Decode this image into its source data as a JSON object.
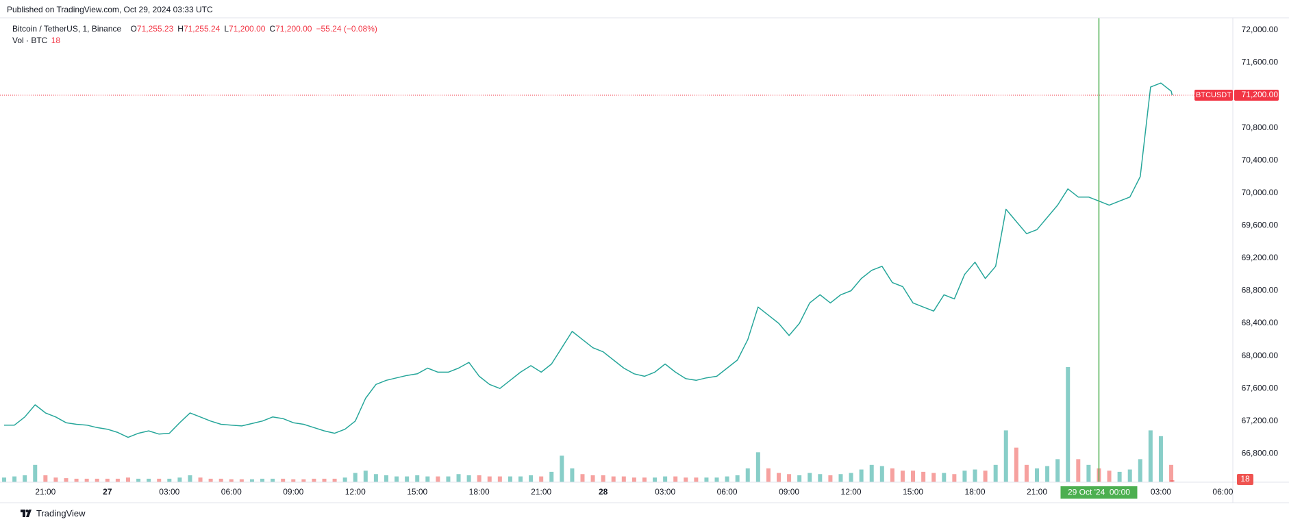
{
  "published": "Published on TradingView.com, Oct 29, 2024 03:33 UTC",
  "legend": {
    "symbol": "Bitcoin / TetherUS, 1, Binance",
    "fields": [
      {
        "key": "O",
        "value": "71,255.23"
      },
      {
        "key": "H",
        "value": "71,255.24"
      },
      {
        "key": "L",
        "value": "71,200.00"
      },
      {
        "key": "C",
        "value": "71,200.00"
      }
    ],
    "change": "−55.24 (−0.08%)",
    "volume_label": "Vol · BTC"
  },
  "footer": "TradingView",
  "chart_data": {
    "type": "line",
    "x": [
      "2024-10-26 19:00",
      "2024-10-26 19:30",
      "2024-10-26 20:00",
      "2024-10-26 20:30",
      "2024-10-26 21:00",
      "2024-10-26 21:30",
      "2024-10-26 22:00",
      "2024-10-26 22:30",
      "2024-10-26 23:00",
      "2024-10-26 23:30",
      "2024-10-27 00:00",
      "2024-10-27 00:30",
      "2024-10-27 01:00",
      "2024-10-27 01:30",
      "2024-10-27 02:00",
      "2024-10-27 02:30",
      "2024-10-27 03:00",
      "2024-10-27 03:30",
      "2024-10-27 04:00",
      "2024-10-27 04:30",
      "2024-10-27 05:00",
      "2024-10-27 05:30",
      "2024-10-27 06:00",
      "2024-10-27 06:30",
      "2024-10-27 07:00",
      "2024-10-27 07:30",
      "2024-10-27 08:00",
      "2024-10-27 08:30",
      "2024-10-27 09:00",
      "2024-10-27 09:30",
      "2024-10-27 10:00",
      "2024-10-27 10:30",
      "2024-10-27 11:00",
      "2024-10-27 11:30",
      "2024-10-27 12:00",
      "2024-10-27 12:30",
      "2024-10-27 13:00",
      "2024-10-27 13:30",
      "2024-10-27 14:00",
      "2024-10-27 14:30",
      "2024-10-27 15:00",
      "2024-10-27 15:30",
      "2024-10-27 16:00",
      "2024-10-27 16:30",
      "2024-10-27 17:00",
      "2024-10-27 17:30",
      "2024-10-27 18:00",
      "2024-10-27 18:30",
      "2024-10-27 19:00",
      "2024-10-27 19:30",
      "2024-10-27 20:00",
      "2024-10-27 20:30",
      "2024-10-27 21:00",
      "2024-10-27 21:30",
      "2024-10-27 22:00",
      "2024-10-27 22:30",
      "2024-10-27 23:00",
      "2024-10-27 23:30",
      "2024-10-28 00:00",
      "2024-10-28 00:30",
      "2024-10-28 01:00",
      "2024-10-28 01:30",
      "2024-10-28 02:00",
      "2024-10-28 02:30",
      "2024-10-28 03:00",
      "2024-10-28 03:30",
      "2024-10-28 04:00",
      "2024-10-28 04:30",
      "2024-10-28 05:00",
      "2024-10-28 05:30",
      "2024-10-28 06:00",
      "2024-10-28 06:30",
      "2024-10-28 07:00",
      "2024-10-28 07:30",
      "2024-10-28 08:00",
      "2024-10-28 08:30",
      "2024-10-28 09:00",
      "2024-10-28 09:30",
      "2024-10-28 10:00",
      "2024-10-28 10:30",
      "2024-10-28 11:00",
      "2024-10-28 11:30",
      "2024-10-28 12:00",
      "2024-10-28 12:30",
      "2024-10-28 13:00",
      "2024-10-28 13:30",
      "2024-10-28 14:00",
      "2024-10-28 14:30",
      "2024-10-28 15:00",
      "2024-10-28 15:30",
      "2024-10-28 16:00",
      "2024-10-28 16:30",
      "2024-10-28 17:00",
      "2024-10-28 17:30",
      "2024-10-28 18:00",
      "2024-10-28 18:30",
      "2024-10-28 19:00",
      "2024-10-28 19:30",
      "2024-10-28 20:00",
      "2024-10-28 20:30",
      "2024-10-28 21:00",
      "2024-10-28 21:30",
      "2024-10-28 22:00",
      "2024-10-28 22:30",
      "2024-10-28 23:00",
      "2024-10-28 23:30",
      "2024-10-29 00:00",
      "2024-10-29 00:30",
      "2024-10-29 01:00",
      "2024-10-29 01:30",
      "2024-10-29 02:00",
      "2024-10-29 02:30",
      "2024-10-29 03:00",
      "2024-10-29 03:30",
      "2024-10-29 03:33"
    ],
    "series": [
      {
        "name": "BTCUSDT",
        "color": "#26a69a",
        "values": [
          67150,
          67150,
          67250,
          67400,
          67300,
          67250,
          67180,
          67160,
          67150,
          67120,
          67100,
          67060,
          67000,
          67050,
          67080,
          67040,
          67050,
          67180,
          67300,
          67250,
          67200,
          67160,
          67150,
          67140,
          67170,
          67200,
          67250,
          67230,
          67180,
          67160,
          67120,
          67080,
          67050,
          67100,
          67200,
          67480,
          67650,
          67700,
          67730,
          67760,
          67780,
          67850,
          67800,
          67800,
          67850,
          67920,
          67750,
          67650,
          67600,
          67700,
          67800,
          67880,
          67800,
          67900,
          68100,
          68300,
          68200,
          68100,
          68050,
          67950,
          67850,
          67780,
          67750,
          67800,
          67900,
          67800,
          67720,
          67700,
          67730,
          67750,
          67850,
          67950,
          68200,
          68600,
          68500,
          68400,
          68250,
          68400,
          68650,
          68750,
          68650,
          68750,
          68800,
          68950,
          69050,
          69100,
          68900,
          68850,
          68650,
          68600,
          68550,
          68750,
          68700,
          69000,
          69150,
          68950,
          69100,
          69800,
          69650,
          69500,
          69550,
          69700,
          69850,
          70050,
          69950,
          69950,
          69900,
          69850,
          69900,
          69950,
          70200,
          71300,
          71350,
          71250,
          71200
        ]
      }
    ],
    "volume": {
      "up_color": "#26a69a",
      "down_color": "#ef5350",
      "ylim": [
        0,
        1000
      ],
      "values": [
        40,
        50,
        60,
        150,
        60,
        40,
        35,
        30,
        30,
        30,
        30,
        30,
        40,
        30,
        30,
        30,
        30,
        40,
        60,
        40,
        30,
        30,
        25,
        25,
        25,
        30,
        30,
        30,
        25,
        25,
        30,
        30,
        30,
        40,
        80,
        100,
        70,
        60,
        50,
        50,
        60,
        50,
        50,
        50,
        70,
        60,
        60,
        50,
        50,
        50,
        50,
        60,
        50,
        90,
        230,
        120,
        70,
        60,
        60,
        50,
        50,
        40,
        40,
        40,
        50,
        50,
        40,
        40,
        40,
        40,
        50,
        60,
        120,
        260,
        120,
        80,
        70,
        60,
        80,
        70,
        60,
        70,
        80,
        110,
        150,
        140,
        120,
        100,
        100,
        90,
        80,
        80,
        70,
        100,
        110,
        100,
        150,
        450,
        300,
        150,
        120,
        140,
        200,
        1000,
        200,
        150,
        120,
        100,
        90,
        110,
        200,
        450,
        400,
        150,
        18
      ]
    },
    "last_price": {
      "value": 71200,
      "label": "71,200.00",
      "color": "#f23645"
    },
    "crosshair": {
      "x": "2024-10-29 00:00",
      "label": "29 Oct '24  00:00",
      "color": "#4caf50"
    },
    "xlim": [
      "2024-10-26 18:48",
      "2024-10-29 06:29"
    ],
    "xticks": [
      {
        "value": "2024-10-26 21:00",
        "label": "21:00"
      },
      {
        "value": "2024-10-27 00:00",
        "label": "27"
      },
      {
        "value": "2024-10-27 03:00",
        "label": "03:00"
      },
      {
        "value": "2024-10-27 06:00",
        "label": "06:00"
      },
      {
        "value": "2024-10-27 09:00",
        "label": "09:00"
      },
      {
        "value": "2024-10-27 12:00",
        "label": "12:00"
      },
      {
        "value": "2024-10-27 15:00",
        "label": "15:00"
      },
      {
        "value": "2024-10-27 18:00",
        "label": "18:00"
      },
      {
        "value": "2024-10-27 21:00",
        "label": "21:00"
      },
      {
        "value": "2024-10-28 00:00",
        "label": "28"
      },
      {
        "value": "2024-10-28 03:00",
        "label": "03:00"
      },
      {
        "value": "2024-10-28 06:00",
        "label": "06:00"
      },
      {
        "value": "2024-10-28 09:00",
        "label": "09:00"
      },
      {
        "value": "2024-10-28 12:00",
        "label": "12:00"
      },
      {
        "value": "2024-10-28 15:00",
        "label": "15:00"
      },
      {
        "value": "2024-10-28 18:00",
        "label": "18:00"
      },
      {
        "value": "2024-10-28 21:00",
        "label": "21:00"
      },
      {
        "value": "2024-10-29 03:00",
        "label": "03:00"
      },
      {
        "value": "2024-10-29 06:00",
        "label": "06:00"
      }
    ],
    "ylim": [
      66450,
      72150
    ],
    "yticks": [
      {
        "value": 66800,
        "label": "66,800.00"
      },
      {
        "value": 67200,
        "label": "67,200.00"
      },
      {
        "value": 67600,
        "label": "67,600.00"
      },
      {
        "value": 68000,
        "label": "68,000.00"
      },
      {
        "value": 68400,
        "label": "68,400.00"
      },
      {
        "value": 68800,
        "label": "68,800.00"
      },
      {
        "value": 69200,
        "label": "69,200.00"
      },
      {
        "value": 69600,
        "label": "69,600.00"
      },
      {
        "value": 70000,
        "label": "70,000.00"
      },
      {
        "value": 70400,
        "label": "70,400.00"
      },
      {
        "value": 70800,
        "label": "70,800.00"
      },
      {
        "value": 71200,
        "label": "71,200.00"
      },
      {
        "value": 71600,
        "label": "71,600.00"
      },
      {
        "value": 72000,
        "label": "72,000.00"
      }
    ],
    "grid": true
  }
}
